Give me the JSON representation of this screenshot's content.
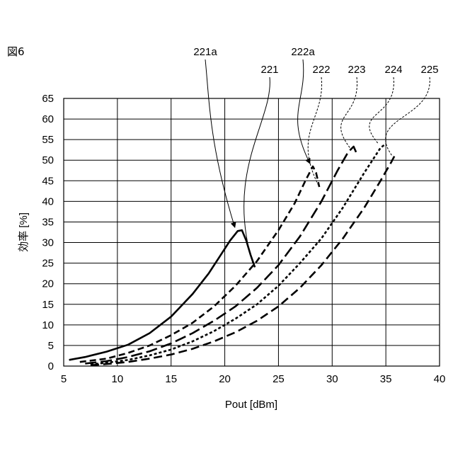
{
  "figure_label": "図6",
  "chart_data": {
    "type": "line",
    "title": "",
    "xlabel": "Pout [dBm]",
    "ylabel": "効率 [%]",
    "xlim": [
      5,
      40
    ],
    "ylim": [
      0,
      65
    ],
    "x_ticks": [
      5,
      10,
      15,
      20,
      25,
      30,
      35,
      40
    ],
    "y_ticks": [
      0,
      5,
      10,
      15,
      20,
      25,
      30,
      35,
      40,
      45,
      50,
      55,
      60,
      65
    ],
    "grid": true,
    "series": [
      {
        "name": "221",
        "style": "solid",
        "x": [
          5.5,
          7,
          9,
          11,
          13,
          15,
          17,
          18.5,
          19.5,
          20.5,
          21.2,
          21.6,
          22,
          22.4,
          22.8
        ],
        "y": [
          1.5,
          2.2,
          3.5,
          5.2,
          8,
          12,
          17.5,
          22.5,
          26.5,
          30.5,
          32.8,
          33,
          30.5,
          27,
          24
        ]
      },
      {
        "name": "222",
        "style": "dashed-short",
        "x": [
          6.5,
          9,
          11,
          13,
          15,
          17,
          19,
          21,
          23,
          25,
          26.5,
          27.5,
          28.2,
          28.5,
          28.8
        ],
        "y": [
          1,
          1.8,
          3.2,
          5,
          7.5,
          10.5,
          14.5,
          19.5,
          25.5,
          33,
          39.5,
          45,
          48.5,
          47,
          43.5
        ]
      },
      {
        "name": "223",
        "style": "dashed-long",
        "x": [
          7,
          9,
          11,
          13,
          15,
          17,
          19,
          21,
          23,
          25,
          27,
          29,
          30.5,
          31.5,
          32,
          32.3
        ],
        "y": [
          0.6,
          1.2,
          2.2,
          3.6,
          5.5,
          8,
          11,
          14.5,
          19,
          24.5,
          31.5,
          40,
          47.5,
          52,
          53.3,
          51.5
        ]
      },
      {
        "name": "224",
        "style": "dotted",
        "x": [
          7.5,
          9,
          11,
          13,
          15,
          17,
          19,
          21,
          23,
          25,
          27,
          29,
          31,
          33,
          34.5,
          35
        ],
        "y": [
          0.4,
          0.8,
          1.5,
          2.6,
          4,
          6,
          8.5,
          11.5,
          15,
          19.5,
          25,
          31,
          38.5,
          47,
          53,
          54
        ]
      },
      {
        "name": "225",
        "style": "dashed-medium",
        "x": [
          7.5,
          9,
          11,
          13,
          15,
          17,
          19,
          21,
          23,
          25,
          27,
          29,
          31,
          33,
          34.5,
          35.5,
          35.8
        ],
        "y": [
          0.2,
          0.5,
          1,
          1.8,
          2.8,
          4.2,
          6,
          8.2,
          11,
          14.5,
          19,
          24.5,
          31,
          38.5,
          45,
          49.5,
          51
        ]
      }
    ],
    "annotations": [
      {
        "label": "221a",
        "target_x": 21.2,
        "target_y": 33,
        "arrow": true
      },
      {
        "label": "222a",
        "target_x": 28.2,
        "target_y": 48.5,
        "arrow": true
      },
      {
        "label": "221",
        "target_x": 22.6,
        "target_y": 25
      },
      {
        "label": "222",
        "target_x": 28.8,
        "target_y": 43.5
      },
      {
        "label": "223",
        "target_x": 31.8,
        "target_y": 52.5
      },
      {
        "label": "224",
        "target_x": 34.3,
        "target_y": 54
      },
      {
        "label": "225",
        "target_x": 35.6,
        "target_y": 51
      }
    ]
  }
}
